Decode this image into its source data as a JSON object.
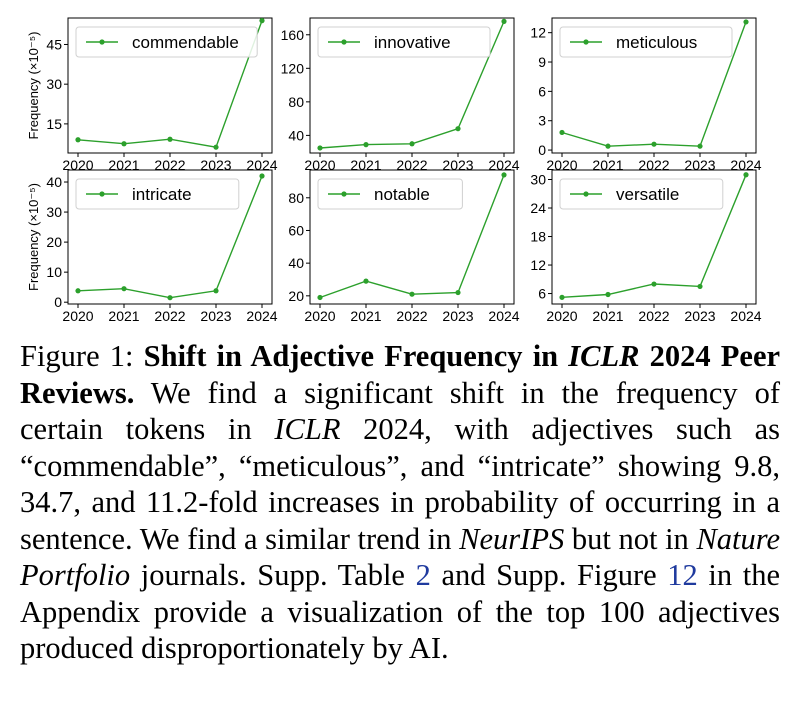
{
  "chart_data": [
    {
      "type": "line",
      "word": "commendable",
      "x": [
        2020,
        2021,
        2022,
        2023,
        2024
      ],
      "y": [
        9.0,
        7.5,
        9.2,
        6.2,
        54.0
      ],
      "yticks": [
        15,
        30,
        45
      ],
      "ylim": [
        4,
        55
      ],
      "ylabel": "Frequency (×10⁻⁵)",
      "color": "#2ca02c",
      "legend": "top-left"
    },
    {
      "type": "line",
      "word": "innovative",
      "x": [
        2020,
        2021,
        2022,
        2023,
        2024
      ],
      "y": [
        25,
        29,
        30,
        48,
        176
      ],
      "yticks": [
        40,
        80,
        120,
        160
      ],
      "ylim": [
        19,
        180
      ],
      "color": "#2ca02c",
      "legend": "top-left"
    },
    {
      "type": "line",
      "word": "meticulous",
      "x": [
        2020,
        2021,
        2022,
        2023,
        2024
      ],
      "y": [
        1.8,
        0.4,
        0.6,
        0.4,
        13.1
      ],
      "yticks": [
        0,
        3,
        6,
        9,
        12
      ],
      "ylim": [
        -0.3,
        13.5
      ],
      "color": "#2ca02c",
      "legend": "top-left"
    },
    {
      "type": "line",
      "word": "intricate",
      "x": [
        2020,
        2021,
        2022,
        2023,
        2024
      ],
      "y": [
        3.8,
        4.5,
        1.5,
        3.8,
        42.0
      ],
      "yticks": [
        0,
        10,
        20,
        30,
        40
      ],
      "ylim": [
        -0.6,
        44
      ],
      "ylabel": "Frequency (×10⁻⁵)",
      "color": "#2ca02c",
      "legend": "top-left"
    },
    {
      "type": "line",
      "word": "notable",
      "x": [
        2020,
        2021,
        2022,
        2023,
        2024
      ],
      "y": [
        19,
        29,
        21,
        22,
        94
      ],
      "yticks": [
        20,
        40,
        60,
        80
      ],
      "ylim": [
        15,
        97
      ],
      "color": "#2ca02c",
      "legend": "top-left"
    },
    {
      "type": "line",
      "word": "versatile",
      "x": [
        2020,
        2021,
        2022,
        2023,
        2024
      ],
      "y": [
        5.2,
        5.8,
        8.0,
        7.5,
        31.0
      ],
      "yticks": [
        6,
        12,
        18,
        24,
        30
      ],
      "ylim": [
        3.8,
        32
      ],
      "color": "#2ca02c",
      "legend": "top-left"
    }
  ],
  "caption": {
    "label": "Figure 1:",
    "title_a": "Shift in Adjective Frequency in",
    "title_venue": "ICLR",
    "title_b": "2024 Peer Reviews.",
    "t1": "We find a significant shift in the frequency of certain tokens in",
    "venue": "ICLR",
    "t2": "2024, with adjectives such as “commendable”, “meticulous”, and “intricate” showing 9.8, 34.7, and 11.2-fold increases in probability of occurring in a sentence. We find a similar trend in",
    "neurips": "NeurIPS",
    "t3": "but not in",
    "nature": "Nature Portfolio",
    "t4": "journals. Supp. Table",
    "ref_table": "2",
    "t5": "and Supp. Figure",
    "ref_fig": "12",
    "t6": "in the Appendix provide a visualization of the top 100 adjectives produced disproportionately by AI."
  }
}
